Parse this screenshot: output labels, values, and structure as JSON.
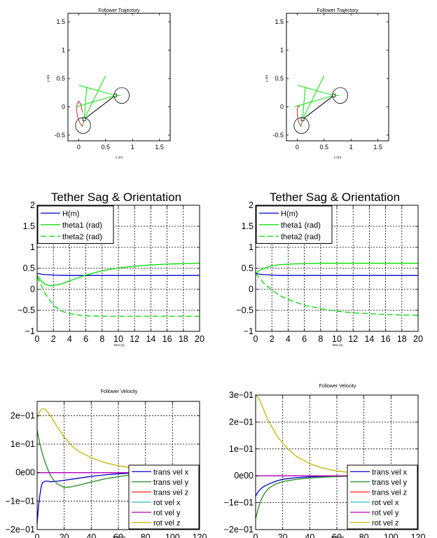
{
  "chart_data": [
    {
      "id": "traj_left",
      "type": "line",
      "title": "Follower Trajectory",
      "xlabel": "x (m)",
      "ylabel": "y (m)",
      "xlim": [
        -0.2,
        1.7
      ],
      "ylim": [
        -0.6,
        1.65
      ],
      "xticks": [
        "0",
        "0.5",
        "1",
        "1.5"
      ],
      "yticks": [
        "-0.5",
        "0",
        "0.5",
        "1",
        "1.5"
      ],
      "grid": false,
      "series": [
        {
          "color": "#d62728",
          "x": [
            0.07,
            0.02,
            -0.02,
            -0.04,
            -0.03,
            0.0,
            0.04,
            0.07
          ],
          "y": [
            -0.35,
            -0.28,
            -0.18,
            -0.05,
            0.05,
            0.1,
            0.04,
            -0.1
          ]
        },
        {
          "color": "#2ca02c",
          "x": [
            0.07,
            0.08,
            0.1
          ],
          "y": [
            -0.35,
            -0.3,
            -0.24
          ]
        },
        {
          "color": "#000000",
          "x": [
            0.1,
            0.68
          ],
          "y": [
            -0.22,
            0.2
          ]
        },
        {
          "color": "#00e600",
          "x": [
            0.1,
            0.15
          ],
          "y": [
            -0.22,
            0.35
          ]
        },
        {
          "color": "#00e600",
          "x": [
            0.1,
            0.5
          ],
          "y": [
            -0.22,
            0.55
          ]
        },
        {
          "color": "#00e600",
          "x": [
            0.68,
            0.0
          ],
          "y": [
            0.2,
            0.38
          ]
        },
        {
          "color": "#00e600",
          "x": [
            0.68,
            -0.05
          ],
          "y": [
            0.2,
            0.0
          ]
        },
        {
          "color": "#00e600",
          "x": [
            0.68,
            0.78
          ],
          "y": [
            0.2,
            0.2
          ]
        }
      ],
      "circles": [
        {
          "cx": 0.08,
          "cy": -0.33,
          "r": 0.14
        },
        {
          "cx": 0.8,
          "cy": 0.2,
          "r": 0.14
        }
      ],
      "markers": [
        {
          "x": 0.1,
          "y": -0.22
        },
        {
          "x": 0.68,
          "y": 0.2
        }
      ]
    },
    {
      "id": "traj_right",
      "type": "line",
      "title": "Follower Trajectory",
      "xlabel": "x (m)",
      "ylabel": "y (m)",
      "xlim": [
        -0.2,
        1.7
      ],
      "ylim": [
        -0.6,
        1.65
      ],
      "xticks": [
        "0",
        "0.5",
        "1",
        "1.5"
      ],
      "yticks": [
        "-0.5",
        "0",
        "0.5",
        "1",
        "1.5"
      ],
      "grid": false,
      "series": [
        {
          "color": "#d62728",
          "x": [
            0.07,
            0.03,
            0.0,
            0.0,
            0.02,
            0.05
          ],
          "y": [
            -0.35,
            -0.27,
            -0.15,
            -0.05,
            0.02,
            0.0
          ]
        },
        {
          "color": "#2ca02c",
          "x": [
            0.07,
            0.08,
            0.1
          ],
          "y": [
            -0.35,
            -0.3,
            -0.24
          ]
        },
        {
          "color": "#000000",
          "x": [
            0.1,
            0.68
          ],
          "y": [
            -0.22,
            0.2
          ]
        },
        {
          "color": "#00e600",
          "x": [
            0.1,
            0.15
          ],
          "y": [
            -0.22,
            0.35
          ]
        },
        {
          "color": "#00e600",
          "x": [
            0.1,
            0.5
          ],
          "y": [
            -0.22,
            0.55
          ]
        },
        {
          "color": "#00e600",
          "x": [
            0.68,
            0.0
          ],
          "y": [
            0.2,
            0.38
          ]
        },
        {
          "color": "#00e600",
          "x": [
            0.68,
            -0.05
          ],
          "y": [
            0.2,
            0.0
          ]
        },
        {
          "color": "#00e600",
          "x": [
            0.68,
            0.78
          ],
          "y": [
            0.2,
            0.2
          ]
        }
      ],
      "circles": [
        {
          "cx": 0.08,
          "cy": -0.33,
          "r": 0.14
        },
        {
          "cx": 0.8,
          "cy": 0.2,
          "r": 0.14
        }
      ],
      "markers": [
        {
          "x": 0.1,
          "y": -0.22
        },
        {
          "x": 0.68,
          "y": 0.2
        }
      ]
    },
    {
      "id": "sag_left",
      "type": "line",
      "title": "Tether Sag & Orientation",
      "xlabel": "time (s)",
      "xlim": [
        0,
        20
      ],
      "ylim": [
        -1,
        2
      ],
      "xticks": [
        "0",
        "2",
        "4",
        "6",
        "8",
        "10",
        "12",
        "14",
        "16",
        "18",
        "20"
      ],
      "yticks": [
        "−1",
        "−0.5",
        "0",
        "0.5",
        "1",
        "1.5",
        "2"
      ],
      "grid": true,
      "legend": "top-left",
      "series": [
        {
          "name": "H(m)",
          "color": "#0000cc",
          "dash": "",
          "x": [
            0,
            0.5,
            1,
            2,
            3,
            4,
            6,
            8,
            10,
            14,
            20
          ],
          "y": [
            0.38,
            0.36,
            0.35,
            0.34,
            0.33,
            0.33,
            0.33,
            0.33,
            0.33,
            0.33,
            0.33
          ]
        },
        {
          "name": "theta1 (rad)",
          "color": "#00dd00",
          "dash": "",
          "x": [
            0,
            0.5,
            1,
            1.5,
            2,
            3,
            4,
            5,
            6,
            8,
            10,
            12,
            14,
            16,
            18,
            20
          ],
          "y": [
            0.33,
            0.2,
            0.12,
            0.09,
            0.09,
            0.13,
            0.2,
            0.27,
            0.34,
            0.44,
            0.51,
            0.55,
            0.58,
            0.6,
            0.61,
            0.62
          ]
        },
        {
          "name": "theta2 (rad)",
          "color": "#00dd00",
          "dash": "8,4",
          "x": [
            0,
            0.5,
            1,
            2,
            3,
            4,
            5,
            6,
            8,
            10,
            12,
            14,
            16,
            18,
            20
          ],
          "y": [
            0.3,
            0.1,
            -0.1,
            -0.38,
            -0.52,
            -0.58,
            -0.61,
            -0.63,
            -0.64,
            -0.64,
            -0.64,
            -0.64,
            -0.64,
            -0.64,
            -0.64
          ]
        }
      ]
    },
    {
      "id": "sag_right",
      "type": "line",
      "title": "Tether Sag & Orientation",
      "xlabel": "time (s)",
      "xlim": [
        0,
        20
      ],
      "ylim": [
        -1,
        2
      ],
      "xticks": [
        "0",
        "2",
        "4",
        "6",
        "8",
        "10",
        "12",
        "14",
        "16",
        "18",
        "20"
      ],
      "yticks": [
        "−1",
        "−0.5",
        "0",
        "0.5",
        "1",
        "1.5",
        "2"
      ],
      "grid": true,
      "legend": "top-left",
      "series": [
        {
          "name": "H(m)",
          "color": "#0000cc",
          "dash": "",
          "x": [
            0,
            0.5,
            1,
            2,
            3,
            4,
            6,
            8,
            10,
            14,
            20
          ],
          "y": [
            0.38,
            0.36,
            0.35,
            0.34,
            0.33,
            0.33,
            0.33,
            0.33,
            0.33,
            0.33,
            0.33
          ]
        },
        {
          "name": "theta1 (rad)",
          "color": "#00dd00",
          "dash": "",
          "x": [
            0,
            0.5,
            1,
            2,
            3,
            4,
            6,
            8,
            10,
            14,
            20
          ],
          "y": [
            0.38,
            0.45,
            0.5,
            0.56,
            0.59,
            0.6,
            0.61,
            0.62,
            0.62,
            0.62,
            0.62
          ]
        },
        {
          "name": "theta2 (rad)",
          "color": "#00dd00",
          "dash": "8,4",
          "x": [
            0,
            1,
            2,
            3,
            4,
            6,
            8,
            10,
            12,
            14,
            16,
            18,
            20
          ],
          "y": [
            0.38,
            0.15,
            -0.02,
            -0.15,
            -0.24,
            -0.38,
            -0.46,
            -0.52,
            -0.56,
            -0.58,
            -0.6,
            -0.61,
            -0.62
          ]
        }
      ]
    },
    {
      "id": "vel_left",
      "type": "line",
      "title": "Follower Velocity",
      "xlabel": "iterations",
      "xlim": [
        0,
        120
      ],
      "ylim": [
        -0.2,
        0.25
      ],
      "xticks": [
        "0",
        "20",
        "40",
        "60",
        "80",
        "100",
        "120"
      ],
      "ytick_values": [
        -0.2,
        -0.1,
        0,
        0.1,
        0.2
      ],
      "yticks": [
        "−2e−01",
        "−1e−01",
        "0e00",
        "1e−01",
        "2e−01"
      ],
      "grid": true,
      "legend": "lower-right",
      "series": [
        {
          "name": "trans vel x",
          "color": "#0000cc",
          "x": [
            0,
            1,
            2,
            3,
            4,
            6,
            8,
            10,
            15,
            20,
            30,
            40,
            50,
            60,
            70
          ],
          "y": [
            -0.18,
            -0.12,
            -0.08,
            -0.05,
            -0.035,
            -0.03,
            -0.03,
            -0.032,
            -0.03,
            -0.027,
            -0.02,
            -0.013,
            -0.008,
            -0.004,
            -0.002
          ]
        },
        {
          "name": "trans vel y",
          "color": "#228b22",
          "x": [
            0,
            2,
            4,
            6,
            8,
            10,
            12,
            15,
            20,
            25,
            30,
            40,
            50,
            60,
            70
          ],
          "y": [
            0.15,
            0.1,
            0.065,
            0.035,
            0.01,
            -0.01,
            -0.025,
            -0.04,
            -0.052,
            -0.05,
            -0.045,
            -0.033,
            -0.022,
            -0.014,
            -0.008
          ]
        },
        {
          "name": "trans vel z",
          "color": "#ff2020",
          "x": [
            0,
            70
          ],
          "y": [
            0,
            0
          ]
        },
        {
          "name": "rot vel x",
          "color": "#20c0c0",
          "x": [
            0,
            70
          ],
          "y": [
            0,
            0
          ]
        },
        {
          "name": "rot vel y",
          "color": "#c000c0",
          "x": [
            0,
            70
          ],
          "y": [
            0,
            0
          ]
        },
        {
          "name": "rot vel z",
          "color": "#c8b400",
          "x": [
            0,
            2,
            4,
            6,
            8,
            10,
            15,
            20,
            25,
            30,
            40,
            50,
            60,
            70
          ],
          "y": [
            0.19,
            0.215,
            0.225,
            0.222,
            0.212,
            0.198,
            0.16,
            0.125,
            0.097,
            0.077,
            0.052,
            0.035,
            0.024,
            0.017
          ]
        }
      ]
    },
    {
      "id": "vel_right",
      "type": "line",
      "title": "Follower Velocity",
      "xlabel": "iterations",
      "xlim": [
        0,
        120
      ],
      "ylim": [
        -0.2,
        0.3
      ],
      "xticks": [
        "0",
        "20",
        "40",
        "60",
        "80",
        "100",
        "120"
      ],
      "ytick_values": [
        -0.2,
        -0.1,
        0,
        0.1,
        0.2,
        0.3
      ],
      "yticks": [
        "−2e−01",
        "−1e−01",
        "0e00",
        "1e−01",
        "2e−01",
        "3e−01"
      ],
      "grid": true,
      "legend": "lower-right",
      "series": [
        {
          "name": "trans vel x",
          "color": "#0000cc",
          "x": [
            0,
            2,
            4,
            6,
            10,
            15,
            20,
            30,
            40,
            50,
            60,
            70
          ],
          "y": [
            -0.075,
            -0.058,
            -0.048,
            -0.04,
            -0.03,
            -0.02,
            -0.013,
            -0.007,
            -0.004,
            -0.002,
            -0.001,
            0.0
          ]
        },
        {
          "name": "trans vel y",
          "color": "#228b22",
          "x": [
            0,
            2,
            4,
            6,
            8,
            10,
            15,
            20,
            30,
            40,
            50,
            60,
            70
          ],
          "y": [
            -0.16,
            -0.12,
            -0.09,
            -0.07,
            -0.055,
            -0.045,
            -0.03,
            -0.022,
            -0.013,
            -0.008,
            -0.005,
            -0.003,
            -0.002
          ]
        },
        {
          "name": "trans vel z",
          "color": "#ff2020",
          "x": [
            0,
            70
          ],
          "y": [
            0,
            0
          ]
        },
        {
          "name": "rot vel x",
          "color": "#20c0c0",
          "x": [
            0,
            70
          ],
          "y": [
            0,
            0
          ]
        },
        {
          "name": "rot vel y",
          "color": "#c000c0",
          "x": [
            0,
            70
          ],
          "y": [
            0,
            0
          ]
        },
        {
          "name": "rot vel z",
          "color": "#c8b400",
          "x": [
            0,
            2,
            4,
            6,
            8,
            10,
            15,
            20,
            25,
            30,
            40,
            50,
            60,
            70
          ],
          "y": [
            0.3,
            0.29,
            0.27,
            0.245,
            0.22,
            0.2,
            0.155,
            0.12,
            0.094,
            0.073,
            0.045,
            0.028,
            0.018,
            0.012
          ]
        }
      ]
    }
  ]
}
